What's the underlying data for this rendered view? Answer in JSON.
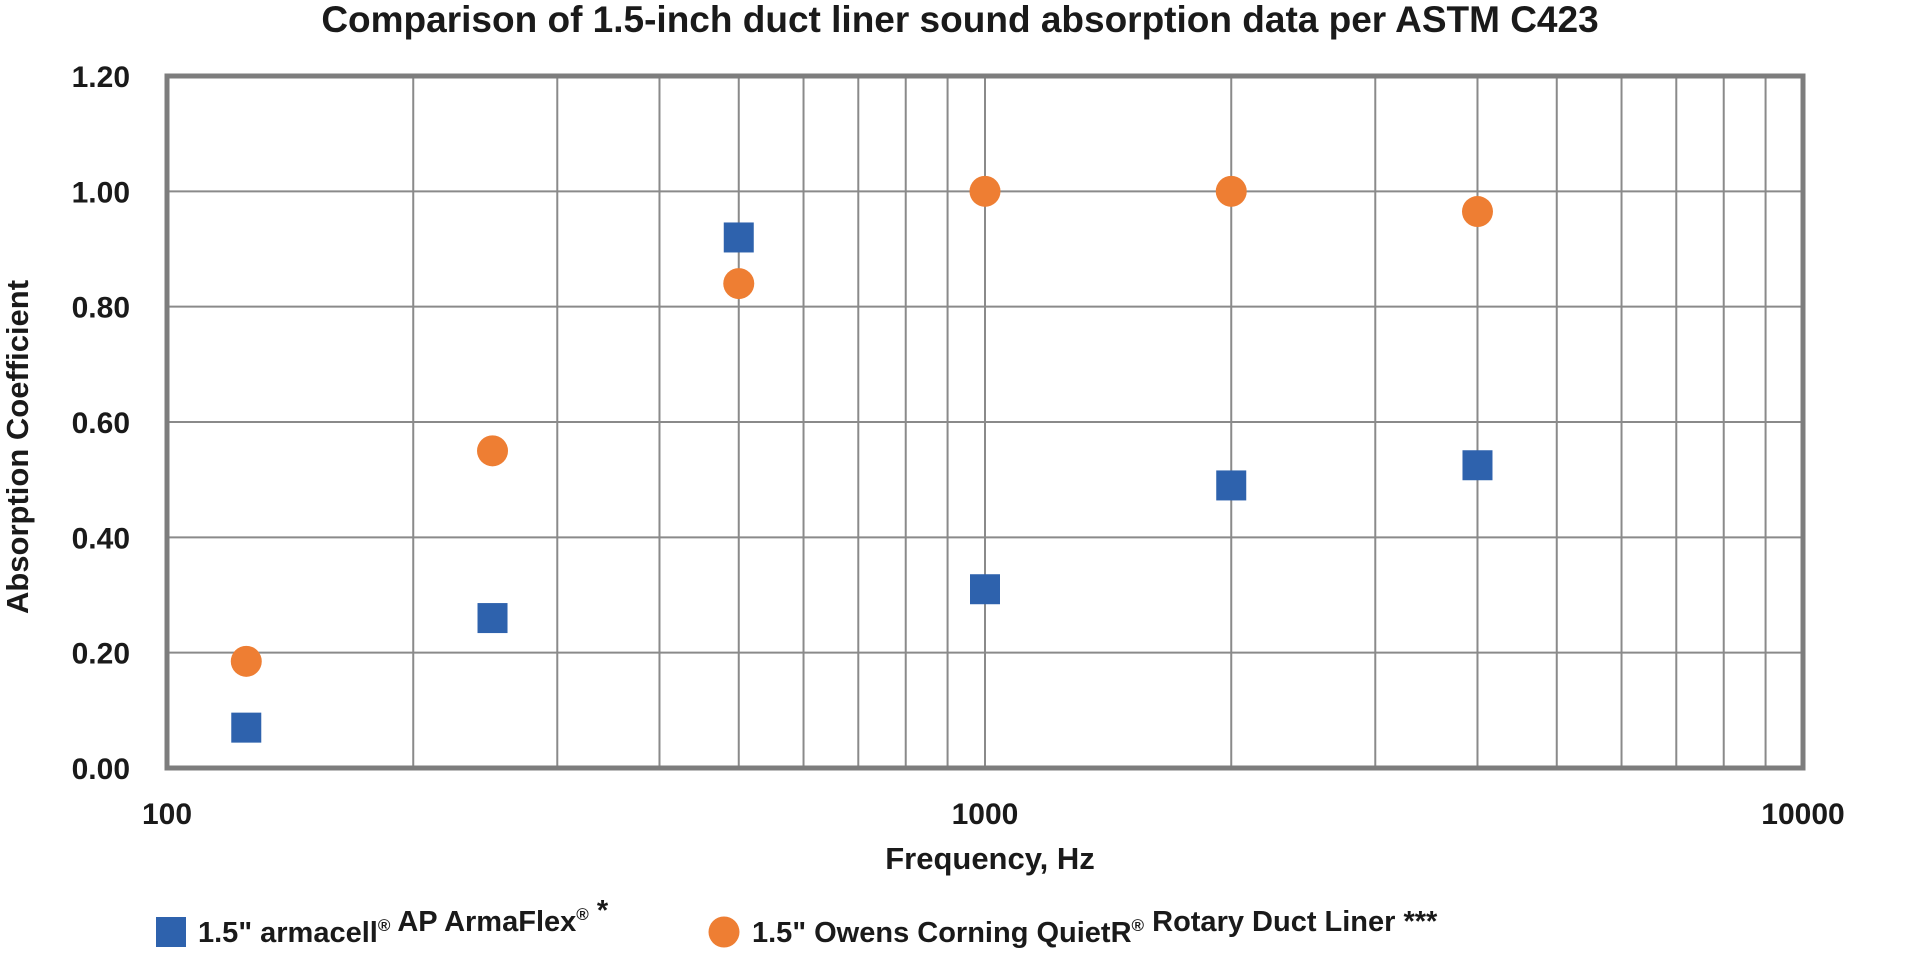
{
  "chart_data": {
    "type": "scatter",
    "title": "Comparison of 1.5-inch duct liner sound absorption data per ASTM C423",
    "xlabel": "Frequency, Hz",
    "ylabel": "Absorption Coefficient",
    "xscale": "log",
    "xlim": [
      100,
      10000
    ],
    "ylim": [
      0,
      1.2
    ],
    "xticks": [
      100,
      1000,
      10000
    ],
    "xtick_labels": [
      "100",
      "1000",
      "10000"
    ],
    "yticks": [
      0,
      0.2,
      0.4,
      0.6,
      0.8,
      1.0,
      1.2
    ],
    "ytick_labels": [
      "0.00",
      "0.20",
      "0.40",
      "0.60",
      "0.80",
      "1.00",
      "1.20"
    ],
    "grid": true,
    "legend_position": "bottom",
    "series": [
      {
        "name_parts": [
          "1.5\" armacell",
          "®",
          " AP ArmaFlex",
          "®",
          " *"
        ],
        "marker": "square",
        "color": "#2E62AD",
        "x": [
          125,
          250,
          500,
          1000,
          2000,
          4000
        ],
        "y": [
          0.07,
          0.26,
          0.92,
          0.31,
          0.49,
          0.525
        ]
      },
      {
        "name_parts": [
          "1.5\" Owens Corning QuietR",
          "®",
          " Rotary Duct Liner ***"
        ],
        "marker": "circle",
        "color": "#EE7E33",
        "x": [
          125,
          250,
          500,
          1000,
          2000,
          4000
        ],
        "y": [
          0.185,
          0.55,
          0.84,
          1.0,
          1.0,
          0.965
        ]
      }
    ]
  }
}
